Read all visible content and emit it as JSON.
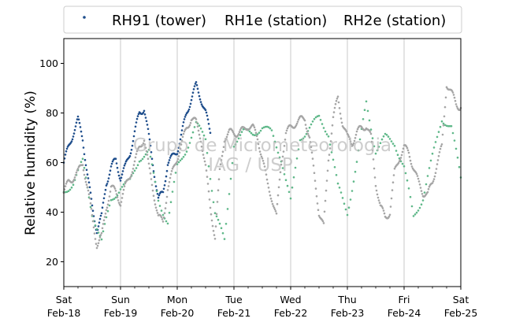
{
  "chart_data": {
    "type": "scatter",
    "ylabel": "Relative humidity (%)",
    "ylim": [
      10,
      110
    ],
    "yticks": [
      20,
      40,
      60,
      80,
      100
    ],
    "xlim": [
      "2024-02-18T00:00",
      "2024-02-25T00:00"
    ],
    "xtick_labels": [
      {
        "day": "Sat",
        "date": "Feb-18"
      },
      {
        "day": "Sun",
        "date": "Feb-19"
      },
      {
        "day": "Mon",
        "date": "Feb-20"
      },
      {
        "day": "Tue",
        "date": "Feb-21"
      },
      {
        "day": "Wed",
        "date": "Feb-22"
      },
      {
        "day": "Thu",
        "date": "Feb-23"
      },
      {
        "day": "Fri",
        "date": "Feb-24"
      },
      {
        "day": "Sat",
        "date": "Feb-25"
      }
    ],
    "grid": "vertical-major",
    "legend_position": "top",
    "watermark": [
      "Grupo de Micrometeorologia",
      "IAG / USP"
    ],
    "series": [
      {
        "name": "RH91 (tower)",
        "color": "#1f4e8c",
        "x_hours": [
          0,
          2,
          4,
          6,
          8,
          10,
          12,
          14,
          16,
          18,
          20,
          22,
          24,
          26,
          28,
          30,
          32,
          34,
          36,
          38,
          40,
          42,
          44,
          46,
          48,
          50,
          52,
          54,
          56,
          58,
          60,
          62
        ],
        "values": [
          60,
          66,
          72,
          77,
          70,
          55,
          42,
          33,
          38,
          52,
          58,
          61,
          54,
          58,
          64,
          72,
          80,
          82,
          70,
          58,
          45,
          48,
          60,
          62,
          65,
          72,
          80,
          86,
          91,
          86,
          80,
          72
        ]
      },
      {
        "name": "RH1e (station)",
        "color": "#5fb889",
        "x_hours": [
          0,
          4,
          8,
          12,
          16,
          20,
          24,
          28,
          32,
          36,
          40,
          44,
          48,
          52,
          56,
          60,
          64,
          68,
          72,
          76,
          80,
          84,
          88,
          92,
          96,
          100,
          104,
          108,
          112,
          116,
          120,
          124,
          128,
          132,
          136,
          140,
          144,
          148,
          152,
          156,
          160,
          164,
          168
        ],
        "values": [
          48,
          52,
          60,
          40,
          28,
          45,
          50,
          52,
          62,
          64,
          45,
          36,
          58,
          66,
          75,
          70,
          40,
          28,
          68,
          72,
          72,
          74,
          72,
          62,
          44,
          70,
          74,
          78,
          72,
          50,
          40,
          60,
          84,
          65,
          70,
          68,
          58,
          38,
          46,
          62,
          78,
          74,
          54
        ]
      },
      {
        "name": "RH2e (station)",
        "color": "#a6a6a6",
        "x_hours": [
          0,
          2,
          4,
          6,
          8,
          10,
          12,
          14,
          16,
          18,
          20,
          22,
          24,
          26,
          28,
          30,
          32,
          34,
          36,
          38,
          40,
          42,
          44,
          46,
          48,
          50,
          52,
          54,
          56,
          58,
          60,
          62,
          64,
          66,
          68,
          70,
          72,
          74,
          76,
          78,
          80,
          82,
          84,
          86,
          88,
          90,
          92,
          94,
          96,
          98,
          100,
          102,
          104,
          106,
          108,
          110,
          112,
          114,
          116,
          118,
          120,
          122,
          124,
          126,
          128,
          130,
          132,
          134,
          136,
          138,
          140,
          142,
          144,
          146,
          148,
          150,
          152,
          154,
          156,
          158,
          160,
          162,
          164,
          166,
          168
        ],
        "values": [
          48,
          52,
          54,
          56,
          60,
          50,
          38,
          27,
          30,
          42,
          50,
          48,
          44,
          50,
          55,
          60,
          66,
          70,
          58,
          48,
          38,
          36,
          50,
          56,
          62,
          68,
          74,
          78,
          76,
          70,
          58,
          42,
          30,
          56,
          70,
          72,
          72,
          72,
          73,
          75,
          74,
          70,
          62,
          52,
          46,
          38,
          60,
          72,
          74,
          76,
          77,
          78,
          70,
          55,
          40,
          34,
          62,
          78,
          86,
          76,
          70,
          68,
          72,
          74,
          75,
          70,
          52,
          42,
          38,
          40,
          56,
          62,
          66,
          64,
          58,
          52,
          48,
          47,
          52,
          60,
          66,
          92,
          88,
          84,
          82
        ]
      }
    ]
  }
}
